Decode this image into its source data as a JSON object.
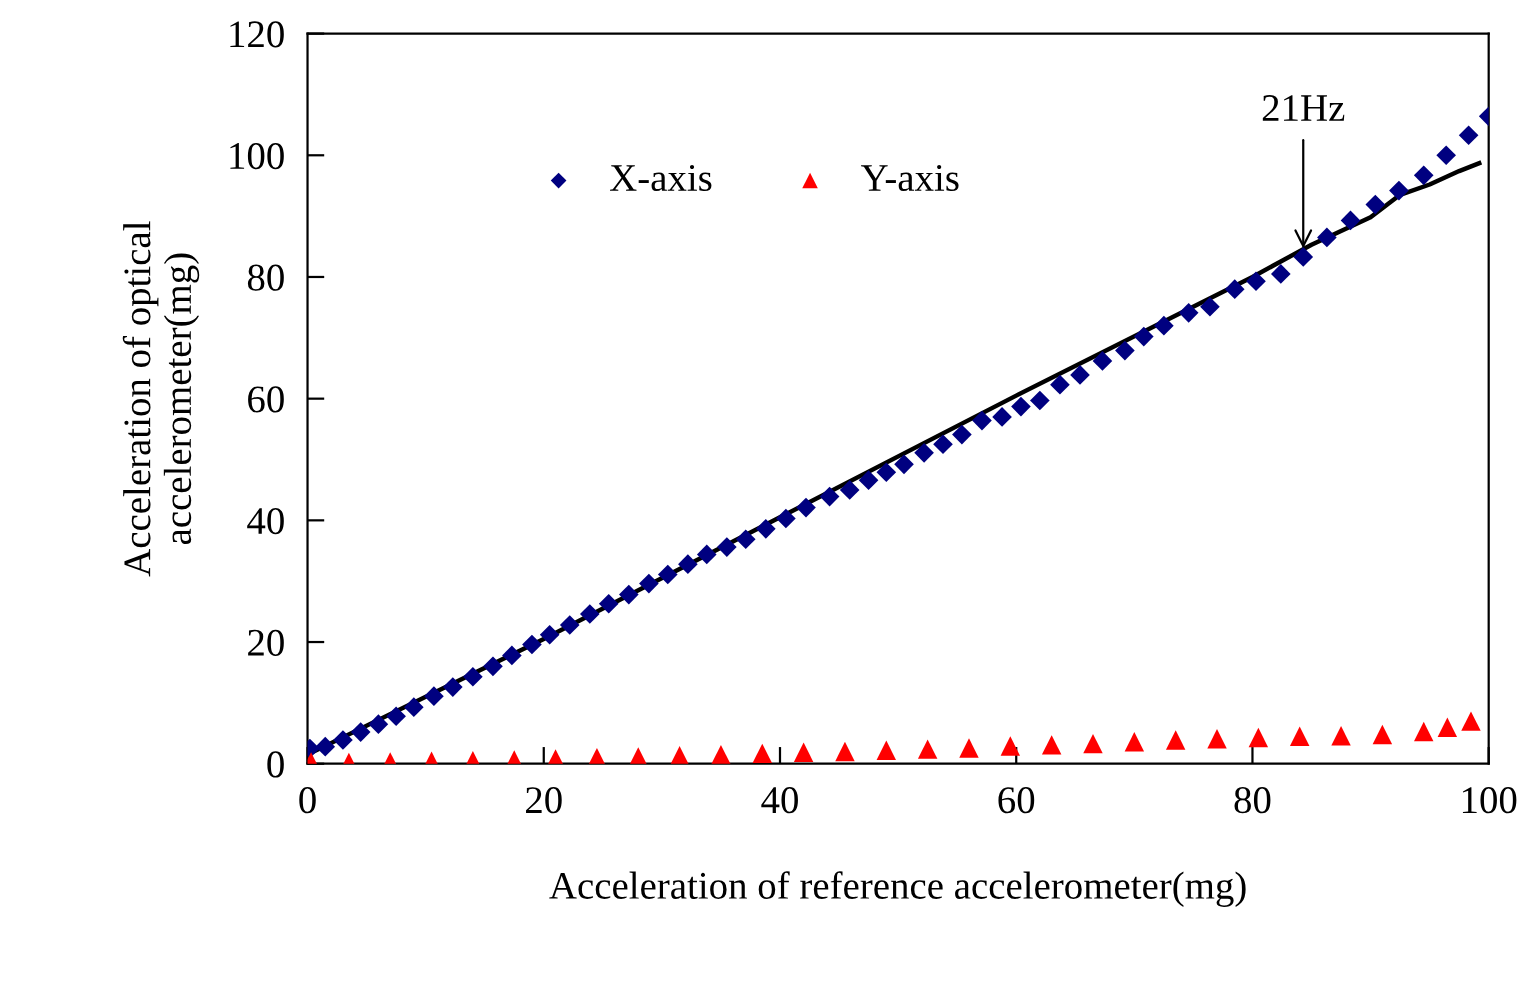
{
  "chart_data": {
    "type": "scatter",
    "xlabel": "Acceleration of reference accelerometer(mg)",
    "ylabel": "Acceleration of optical\naccelerometer(mg)",
    "xlim": [
      0,
      100
    ],
    "xticks": [
      0,
      20,
      40,
      60,
      80,
      100
    ],
    "ylim": [
      0,
      120
    ],
    "yticks": [
      0,
      20,
      40,
      60,
      80,
      100,
      120
    ],
    "grid": false,
    "legend": "top left",
    "annotations": [
      {
        "text": "21Hz",
        "x": 84.3,
        "y": 83.3
      }
    ],
    "series": [
      {
        "name": "X-axis",
        "color": "#000080",
        "marker": "diamond",
        "x": [
          0.2,
          1.5,
          3,
          4.5,
          6,
          7.5,
          9,
          10.7,
          12.3,
          14,
          15.7,
          17.3,
          19,
          20.5,
          22.2,
          23.9,
          25.5,
          27.2,
          28.9,
          30.5,
          32.2,
          33.8,
          35.5,
          37.1,
          38.8,
          40.5,
          42.2,
          44.2,
          45.9,
          47.5,
          49,
          50.5,
          52.2,
          53.8,
          55.4,
          57.1,
          58.8,
          60.4,
          62,
          63.7,
          65.4,
          67.3,
          69.2,
          70.8,
          72.5,
          74.6,
          76.4,
          78.5,
          80.3,
          82.4,
          84.3,
          86.3,
          88.3,
          90.4,
          92.4,
          94.5,
          96.4,
          98.3,
          100
        ],
        "values": [
          2.5,
          2.8,
          3.9,
          5.2,
          6.5,
          7.8,
          9.3,
          11.1,
          12.6,
          14.3,
          16,
          17.8,
          19.6,
          21.2,
          22.8,
          24.6,
          26.3,
          27.8,
          29.6,
          31.1,
          32.8,
          34.4,
          35.6,
          36.9,
          38.6,
          40.3,
          42.1,
          43.9,
          45,
          46.6,
          47.9,
          49.2,
          51.1,
          52.5,
          54.1,
          56.4,
          57,
          58.7,
          59.7,
          62.3,
          63.9,
          66.2,
          67.9,
          70.2,
          72,
          74.1,
          75.1,
          78,
          79.3,
          80.5,
          83.3,
          86.5,
          89.3,
          91.9,
          94.2,
          96.7,
          100,
          103.3,
          106.4
        ]
      },
      {
        "name": "Y-axis",
        "color": "#ff0000",
        "marker": "triangle",
        "x": [
          0.3,
          3.5,
          7,
          10.5,
          14,
          17.5,
          21,
          24.5,
          28,
          31.5,
          35,
          38.5,
          42,
          45.5,
          49,
          52.5,
          56,
          59.5,
          63,
          66.5,
          70,
          73.5,
          77,
          80.5,
          84,
          87.5,
          91,
          94.5,
          96.5,
          98.5
        ],
        "values": [
          0.3,
          0.2,
          0.3,
          0.4,
          0.5,
          0.6,
          0.8,
          1,
          1.1,
          1.3,
          1.5,
          1.7,
          1.9,
          2,
          2.2,
          2.4,
          2.6,
          2.9,
          3.1,
          3.3,
          3.6,
          3.9,
          4.1,
          4.3,
          4.5,
          4.6,
          4.8,
          5.3,
          6,
          7
        ]
      },
      {
        "type": "line",
        "color": "#000000",
        "marker": "none",
        "x": [
          0,
          20,
          40,
          60,
          80,
          85,
          90,
          92.5,
          95,
          97.5,
          99.2
        ],
        "values": [
          1.5,
          20.5,
          40.5,
          60.5,
          80,
          85.3,
          89.8,
          93.5,
          95.2,
          97.4,
          98.7
        ]
      }
    ]
  }
}
